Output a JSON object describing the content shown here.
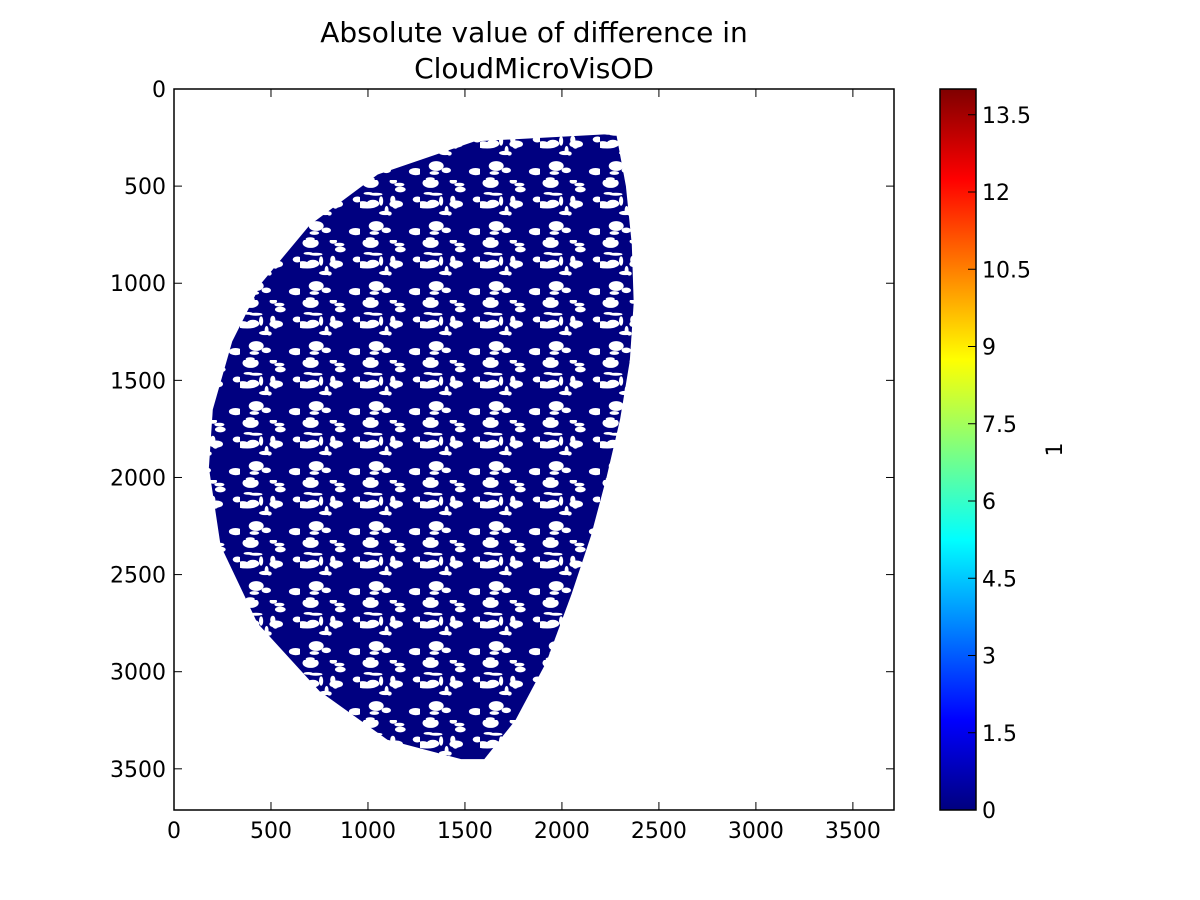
{
  "chart_data": {
    "type": "heatmap",
    "title_lines": [
      "Absolute value of difference in",
      "CloudMicroVisOD"
    ],
    "xlabel": "",
    "ylabel": "",
    "xlim": [
      0,
      3712
    ],
    "ylim": [
      3712,
      0
    ],
    "x_ticks": [
      0,
      500,
      1000,
      1500,
      2000,
      2500,
      3000,
      3500
    ],
    "y_ticks": [
      0,
      500,
      1000,
      1500,
      2000,
      2500,
      3000,
      3500
    ],
    "grid": false,
    "colormap": "jet",
    "colorbar": {
      "label": "1",
      "range": [
        0,
        14
      ],
      "ticks": [
        "0",
        "1.5",
        "3",
        "4.5",
        "6",
        "7.5",
        "9",
        "10.5",
        "12",
        "13.5"
      ],
      "tick_values": [
        0,
        1.5,
        3,
        4.5,
        6,
        7.5,
        9,
        10.5,
        12,
        13.5
      ],
      "colors": [
        "#00007f",
        "#0000ff",
        "#007fff",
        "#00ffff",
        "#7fff7f",
        "#ffff00",
        "#ff7f00",
        "#ff0000",
        "#7f0000"
      ]
    },
    "dominant_value": 0,
    "dominant_color": "#000080",
    "nan_color": "#ffffff",
    "data_region": {
      "left_boundary": [
        [
          2280,
          230
        ],
        [
          1550,
          270
        ],
        [
          1050,
          440
        ],
        [
          700,
          700
        ],
        [
          450,
          1000
        ],
        [
          300,
          1300
        ],
        [
          200,
          1650
        ],
        [
          180,
          1950
        ],
        [
          240,
          2350
        ],
        [
          430,
          2750
        ],
        [
          750,
          3100
        ],
        [
          1100,
          3350
        ],
        [
          1480,
          3450
        ]
      ],
      "right_boundary": [
        [
          2280,
          230
        ],
        [
          2330,
          500
        ],
        [
          2360,
          800
        ],
        [
          2370,
          1100
        ],
        [
          2350,
          1400
        ],
        [
          2300,
          1700
        ],
        [
          2230,
          2000
        ],
        [
          2150,
          2300
        ],
        [
          2050,
          2600
        ],
        [
          1920,
          2950
        ],
        [
          1760,
          3250
        ],
        [
          1600,
          3450
        ]
      ]
    }
  }
}
